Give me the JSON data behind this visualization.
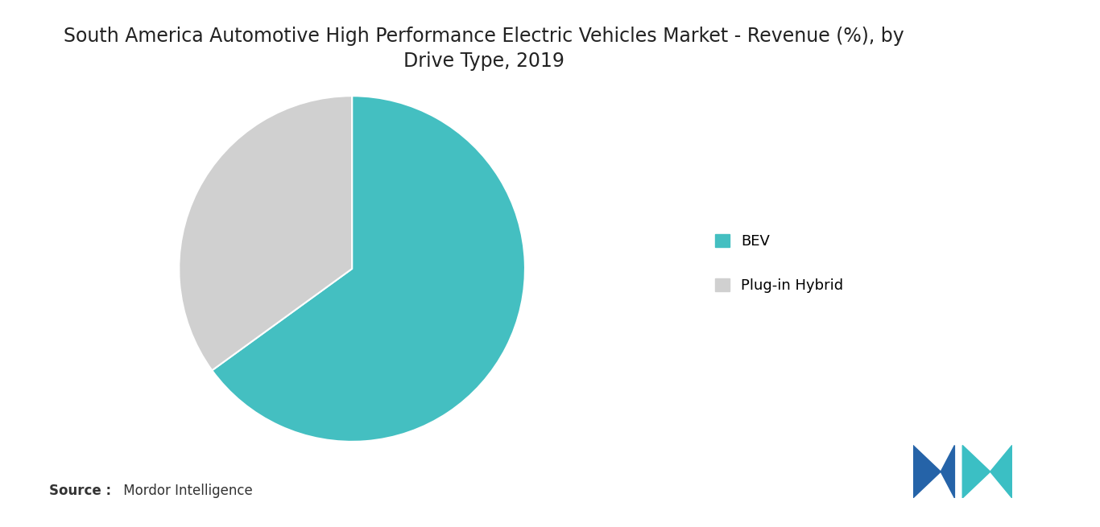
{
  "title": "South America Automotive High Performance Electric Vehicles Market - Revenue (%), by\nDrive Type, 2019",
  "slices": [
    65,
    35
  ],
  "labels": [
    "BEV",
    "Plug-in Hybrid"
  ],
  "colors": [
    "#44BFC1",
    "#D0D0D0"
  ],
  "startangle": 90,
  "source_bold": "Source :",
  "source_rest": " Mordor Intelligence",
  "background_color": "#FFFFFF",
  "title_fontsize": 17,
  "legend_fontsize": 13,
  "source_fontsize": 12
}
